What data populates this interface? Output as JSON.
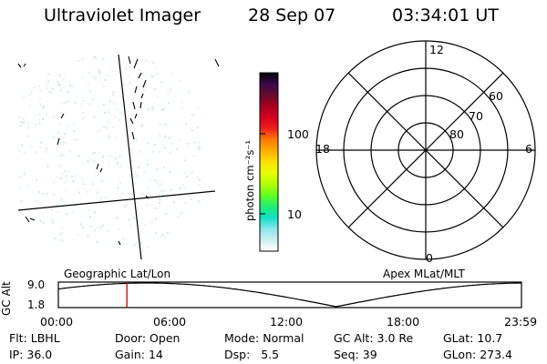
{
  "header": {
    "instrument": "Ultraviolet Imager",
    "date": "28 Sep 07",
    "time": "03:34:01 UT"
  },
  "colorbar": {
    "unit_label": "photon cm⁻²s⁻¹",
    "ticks": [
      "100",
      "10"
    ],
    "colors": [
      "#000000",
      "#3a0a4a",
      "#6a0a2a",
      "#a8001e",
      "#d6001e",
      "#f0201e",
      "#ff7a00",
      "#ffb000",
      "#ffe000",
      "#e6ff00",
      "#b0ff00",
      "#60ff20",
      "#20f070",
      "#10e0c8",
      "#8ae6ea",
      "#cfeff0",
      "#ffffff"
    ]
  },
  "polar_plot": {
    "mlt_labels": {
      "top": "12",
      "left": "18",
      "right": "6",
      "bottom": "0"
    },
    "lat_labels": [
      "60",
      "70",
      "80"
    ]
  },
  "orbit_panel": {
    "left_label": "Geographic Lat/Lon",
    "right_label": "Apex MLat/MLT",
    "y_axis_label": "GC Alt",
    "y_ticks": [
      "9.0",
      "1.8"
    ],
    "x_ticks": [
      "00:00",
      "06:00",
      "12:00",
      "18:00",
      "23:59"
    ],
    "current_time_fraction": 0.148,
    "marker_color": "#cc0000"
  },
  "status": {
    "row1": [
      {
        "label": "Flt:",
        "value": "LBHL"
      },
      {
        "label": "Door:",
        "value": "Open"
      },
      {
        "label": "Mode:",
        "value": "Normal"
      },
      {
        "label": "GC Alt:",
        "value": "3.0 Re"
      },
      {
        "label": "GLat:",
        "value": "10.7"
      }
    ],
    "row2": [
      {
        "label": "IP:",
        "value": "36.0"
      },
      {
        "label": "Gain:",
        "value": "14"
      },
      {
        "label": "Dsp:",
        "value": "5.5"
      },
      {
        "label": "Seq:",
        "value": "39"
      },
      {
        "label": "GLon:",
        "value": "273.4"
      }
    ]
  }
}
